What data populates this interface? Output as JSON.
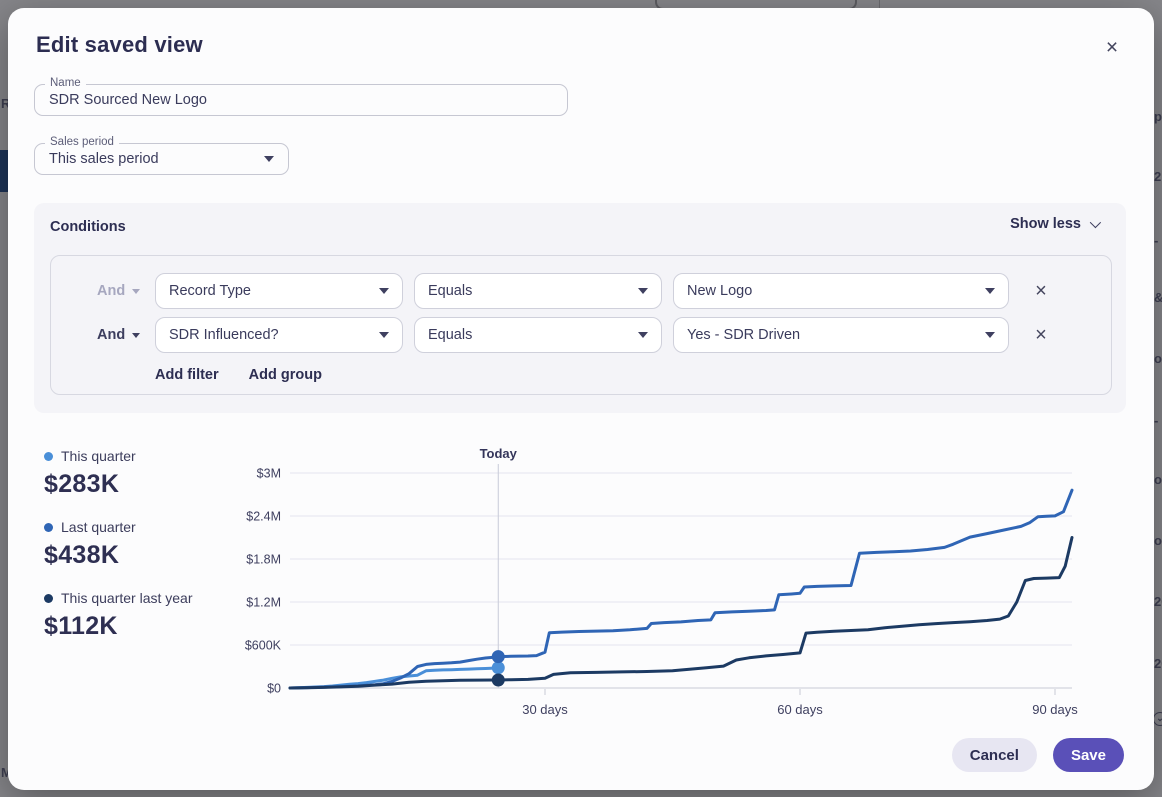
{
  "backdrop": {
    "left_fragments": [
      {
        "text": "R",
        "y": 97
      },
      {
        "text": "M",
        "y": 766
      }
    ],
    "right_fragments": [
      {
        "text": "p",
        "y": 110
      },
      {
        "text": "2",
        "y": 170
      },
      {
        "text": "-",
        "y": 234
      },
      {
        "text": "&",
        "y": 291
      },
      {
        "text": "o",
        "y": 352
      },
      {
        "text": "-",
        "y": 414
      },
      {
        "text": "or",
        "y": 473
      },
      {
        "text": "o",
        "y": 534
      },
      {
        "text": "20",
        "y": 595
      },
      {
        "text": "20",
        "y": 657
      }
    ]
  },
  "modal": {
    "title": "Edit saved view",
    "close_icon": "×",
    "name_field": {
      "label": "Name",
      "value": "SDR Sourced New Logo"
    },
    "period_select": {
      "label": "Sales period",
      "value": "This sales period"
    },
    "conditions": {
      "title": "Conditions",
      "toggle_label": "Show less",
      "rows": [
        {
          "operator": "And",
          "field": "Record Type",
          "comparator": "Equals",
          "value": "New Logo",
          "remove_icon": "×"
        },
        {
          "operator": "And",
          "field": "SDR Influenced?",
          "comparator": "Equals",
          "value": "Yes - SDR Driven",
          "remove_icon": "×"
        }
      ],
      "add_filter_label": "Add filter",
      "add_group_label": "Add group"
    },
    "legend": [
      {
        "label": "This quarter",
        "value": "$283K",
        "color": "#4a8fd8"
      },
      {
        "label": "Last quarter",
        "value": "$438K",
        "color": "#2f65b5"
      },
      {
        "label": "This quarter last year",
        "value": "$112K",
        "color": "#1c3a63"
      }
    ],
    "chart_data": {
      "type": "line",
      "today_label": "Today",
      "today_day": 24.5,
      "xlim": [
        0,
        92
      ],
      "ylim": [
        0,
        3000
      ],
      "y_unit": "$K",
      "grid": true,
      "x_ticks": [
        {
          "day": 30,
          "label": "30 days"
        },
        {
          "day": 60,
          "label": "60 days"
        },
        {
          "day": 90,
          "label": "90 days"
        }
      ],
      "y_ticks": [
        {
          "value": 0,
          "label": "$0"
        },
        {
          "value": 600,
          "label": "$600K"
        },
        {
          "value": 1200,
          "label": "$1.2M"
        },
        {
          "value": 1800,
          "label": "$1.8M"
        },
        {
          "value": 2400,
          "label": "$2.4M"
        },
        {
          "value": 3000,
          "label": "$3M"
        }
      ],
      "series": [
        {
          "name": "This quarter",
          "color": "#4a8fd8",
          "marker_value": 283,
          "points": [
            [
              0,
              0
            ],
            [
              1,
              4
            ],
            [
              2,
              8
            ],
            [
              3,
              14
            ],
            [
              4,
              20
            ],
            [
              5,
              28
            ],
            [
              6,
              40
            ],
            [
              7,
              52
            ],
            [
              8,
              62
            ],
            [
              9,
              76
            ],
            [
              10,
              92
            ],
            [
              11,
              110
            ],
            [
              12,
              135
            ],
            [
              13,
              155
            ],
            [
              14,
              168
            ],
            [
              15,
              178
            ],
            [
              16,
              240
            ],
            [
              17,
              248
            ],
            [
              18,
              252
            ],
            [
              19,
              256
            ],
            [
              20,
              260
            ],
            [
              21,
              264
            ],
            [
              22,
              268
            ],
            [
              23,
              272
            ],
            [
              24,
              278
            ],
            [
              24.5,
              283
            ]
          ]
        },
        {
          "name": "Last quarter",
          "color": "#2f65b5",
          "marker_value": 438,
          "points": [
            [
              0,
              0
            ],
            [
              2,
              5
            ],
            [
              4,
              12
            ],
            [
              6,
              20
            ],
            [
              8,
              30
            ],
            [
              10,
              45
            ],
            [
              11,
              60
            ],
            [
              12,
              90
            ],
            [
              13,
              140
            ],
            [
              14,
              200
            ],
            [
              15,
              300
            ],
            [
              16,
              330
            ],
            [
              17,
              340
            ],
            [
              18,
              346
            ],
            [
              19,
              352
            ],
            [
              20,
              362
            ],
            [
              21,
              382
            ],
            [
              22,
              402
            ],
            [
              23,
              418
            ],
            [
              24,
              430
            ],
            [
              24.5,
              438
            ],
            [
              26,
              442
            ],
            [
              28,
              446
            ],
            [
              29,
              452
            ],
            [
              30,
              500
            ],
            [
              30.5,
              770
            ],
            [
              32,
              780
            ],
            [
              34,
              788
            ],
            [
              36,
              794
            ],
            [
              38,
              800
            ],
            [
              40,
              812
            ],
            [
              42,
              832
            ],
            [
              42.5,
              900
            ],
            [
              44,
              912
            ],
            [
              46,
              922
            ],
            [
              48,
              942
            ],
            [
              49.5,
              950
            ],
            [
              50,
              1050
            ],
            [
              52,
              1062
            ],
            [
              54,
              1072
            ],
            [
              56,
              1082
            ],
            [
              57,
              1090
            ],
            [
              57.5,
              1300
            ],
            [
              59,
              1312
            ],
            [
              60,
              1322
            ],
            [
              60.5,
              1410
            ],
            [
              62,
              1418
            ],
            [
              64,
              1424
            ],
            [
              66,
              1430
            ],
            [
              67,
              1880
            ],
            [
              69,
              1892
            ],
            [
              71,
              1902
            ],
            [
              73,
              1912
            ],
            [
              75,
              1932
            ],
            [
              77,
              1962
            ],
            [
              78,
              2005
            ],
            [
              80,
              2105
            ],
            [
              82,
              2155
            ],
            [
              84,
              2205
            ],
            [
              86,
              2255
            ],
            [
              87,
              2305
            ],
            [
              88,
              2390
            ],
            [
              89,
              2396
            ],
            [
              90,
              2402
            ],
            [
              91,
              2460
            ],
            [
              92,
              2760
            ]
          ]
        },
        {
          "name": "This quarter last year",
          "color": "#1c3a63",
          "marker_value": 112,
          "points": [
            [
              0,
              0
            ],
            [
              2,
              3
            ],
            [
              4,
              8
            ],
            [
              6,
              15
            ],
            [
              8,
              25
            ],
            [
              10,
              40
            ],
            [
              12,
              55
            ],
            [
              14,
              80
            ],
            [
              16,
              95
            ],
            [
              18,
              102
            ],
            [
              20,
              107
            ],
            [
              22,
              110
            ],
            [
              24,
              112
            ],
            [
              24.5,
              112
            ],
            [
              26,
              116
            ],
            [
              28,
              120
            ],
            [
              30,
              135
            ],
            [
              31,
              190
            ],
            [
              33,
              212
            ],
            [
              36,
              218
            ],
            [
              39,
              224
            ],
            [
              42,
              230
            ],
            [
              45,
              242
            ],
            [
              47,
              262
            ],
            [
              49,
              282
            ],
            [
              51,
              305
            ],
            [
              52.5,
              390
            ],
            [
              54,
              422
            ],
            [
              56,
              448
            ],
            [
              58,
              468
            ],
            [
              60,
              490
            ],
            [
              60.7,
              766
            ],
            [
              62,
              778
            ],
            [
              64,
              792
            ],
            [
              66,
              802
            ],
            [
              68,
              812
            ],
            [
              70,
              842
            ],
            [
              72,
              862
            ],
            [
              74,
              882
            ],
            [
              76,
              898
            ],
            [
              78,
              912
            ],
            [
              80,
              925
            ],
            [
              82,
              942
            ],
            [
              83.5,
              962
            ],
            [
              84.5,
              1005
            ],
            [
              85.5,
              1200
            ],
            [
              86.5,
              1500
            ],
            [
              87.5,
              1528
            ],
            [
              89,
              1534
            ],
            [
              90.5,
              1540
            ],
            [
              91.2,
              1700
            ],
            [
              92,
              2100
            ]
          ]
        }
      ]
    },
    "footer": {
      "cancel_label": "Cancel",
      "save_label": "Save"
    }
  },
  "colors": {
    "accent_purple": "#5a50b8",
    "backdrop_gray": "#86868a",
    "card_gray": "#f4f4f8"
  }
}
